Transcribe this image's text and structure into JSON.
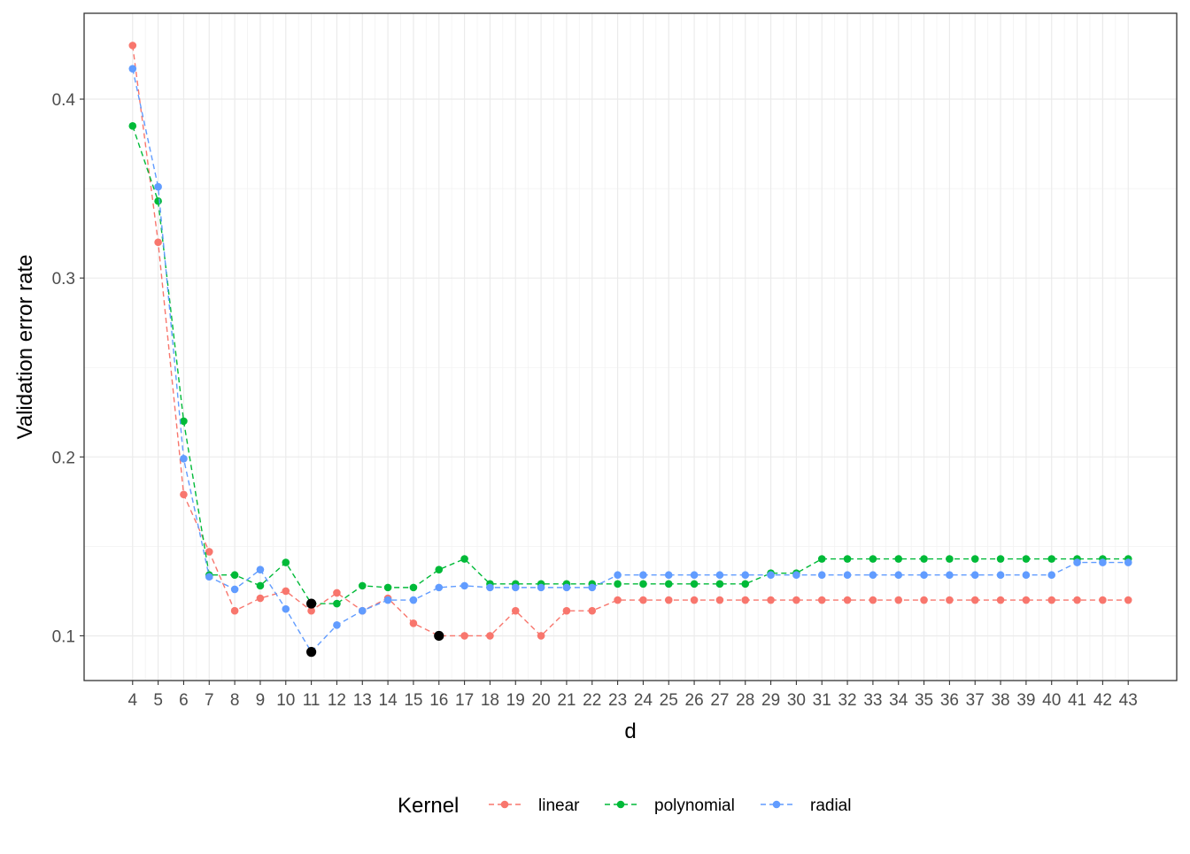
{
  "chart_data": {
    "type": "line",
    "title": "",
    "xlabel": "d",
    "ylabel": "Validation error rate",
    "x": [
      4,
      5,
      6,
      7,
      8,
      9,
      10,
      11,
      12,
      13,
      14,
      15,
      16,
      17,
      18,
      19,
      20,
      21,
      22,
      23,
      24,
      25,
      26,
      27,
      28,
      29,
      30,
      31,
      32,
      33,
      34,
      35,
      36,
      37,
      38,
      39,
      40,
      41,
      42,
      43
    ],
    "x_tick_labels": [
      "4",
      "5",
      "6",
      "7",
      "8",
      "9",
      "10",
      "11",
      "12",
      "13",
      "14",
      "15",
      "16",
      "17",
      "18",
      "19",
      "20",
      "21",
      "22",
      "23",
      "24",
      "25",
      "26",
      "27",
      "28",
      "29",
      "30",
      "31",
      "32",
      "33",
      "34",
      "35",
      "36",
      "37",
      "38",
      "39",
      "40",
      "41",
      "42",
      "43"
    ],
    "xlim": [
      2.1,
      44.9
    ],
    "ylim": [
      0.075,
      0.448
    ],
    "y_ticks": [
      0.1,
      0.2,
      0.3,
      0.4
    ],
    "y_tick_labels": [
      "0.1",
      "0.2",
      "0.3",
      "0.4"
    ],
    "y_minor_ticks": [
      0.15,
      0.25,
      0.35
    ],
    "grid": true,
    "line_style": "dashed",
    "legend": {
      "title": "Kernel",
      "position": "bottom"
    },
    "series": [
      {
        "name": "linear",
        "color": "#F8766D",
        "values": [
          0.43,
          0.32,
          0.179,
          0.147,
          0.114,
          0.121,
          0.125,
          0.114,
          0.124,
          0.114,
          0.121,
          0.107,
          0.1,
          0.1,
          0.1,
          0.114,
          0.1,
          0.114,
          0.114,
          0.12,
          0.12,
          0.12,
          0.12,
          0.12,
          0.12,
          0.12,
          0.12,
          0.12,
          0.12,
          0.12,
          0.12,
          0.12,
          0.12,
          0.12,
          0.12,
          0.12,
          0.12,
          0.12,
          0.12,
          0.12
        ]
      },
      {
        "name": "polynomial",
        "color": "#00BA38",
        "values": [
          0.385,
          0.343,
          0.22,
          0.134,
          0.134,
          0.128,
          0.141,
          0.118,
          0.118,
          0.128,
          0.127,
          0.127,
          0.137,
          0.143,
          0.129,
          0.129,
          0.129,
          0.129,
          0.129,
          0.129,
          0.129,
          0.129,
          0.129,
          0.129,
          0.129,
          0.135,
          0.135,
          0.143,
          0.143,
          0.143,
          0.143,
          0.143,
          0.143,
          0.143,
          0.143,
          0.143,
          0.143,
          0.143,
          0.143,
          0.143
        ]
      },
      {
        "name": "radial",
        "color": "#619CFF",
        "values": [
          0.417,
          0.351,
          0.199,
          0.133,
          0.126,
          0.137,
          0.115,
          0.091,
          0.106,
          0.114,
          0.12,
          0.12,
          0.127,
          0.128,
          0.127,
          0.127,
          0.127,
          0.127,
          0.127,
          0.134,
          0.134,
          0.134,
          0.134,
          0.134,
          0.134,
          0.134,
          0.134,
          0.134,
          0.134,
          0.134,
          0.134,
          0.134,
          0.134,
          0.134,
          0.134,
          0.134,
          0.134,
          0.141,
          0.141,
          0.141
        ]
      }
    ],
    "highlighted_minima": [
      {
        "series": "linear",
        "x": 16,
        "y": 0.1
      },
      {
        "series": "polynomial",
        "x": 11,
        "y": 0.118
      },
      {
        "series": "radial",
        "x": 11,
        "y": 0.091
      }
    ]
  }
}
